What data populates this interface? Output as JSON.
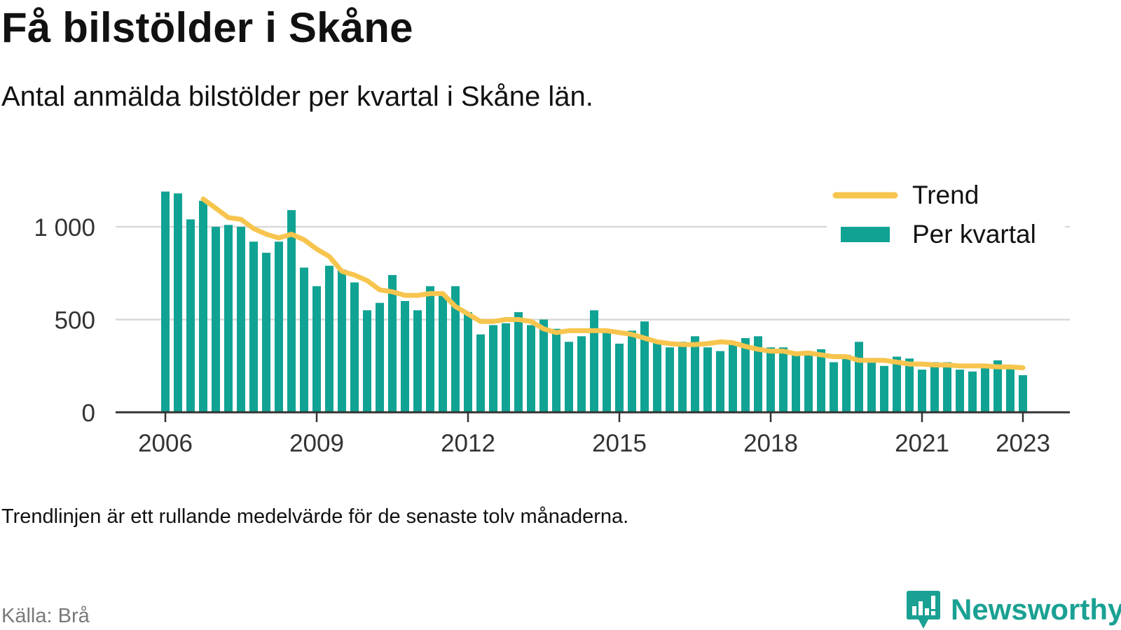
{
  "header": {
    "title": "Få bilstölder i Skåne",
    "subtitle": "Antal anmälda bilstölder per kvartal i Skåne län."
  },
  "footer": {
    "note": "Trendlinjen är ett rullande medelvärde för de senaste tolv månaderna.",
    "source": "Källa: Brå",
    "brand": "Newsworthy"
  },
  "colors": {
    "bars": "#10a393",
    "trend": "#f7c54e",
    "grid": "#d9d9d9",
    "axis": "#333333",
    "brand": "#1aa193"
  },
  "chart_data": {
    "type": "bar",
    "x_start": 2006,
    "x_step_per_bar": 0.25,
    "xticks": [
      2006,
      2009,
      2012,
      2015,
      2018,
      2021,
      2023
    ],
    "yticks": [
      0,
      500,
      1000
    ],
    "ytick_labels": [
      "0",
      "500",
      "1 000"
    ],
    "ylim": [
      0,
      1250
    ],
    "grid": true,
    "legend_position": "top-right",
    "legend": [
      "Trend",
      "Per kvartal"
    ],
    "series": [
      {
        "name": "Per kvartal",
        "kind": "bar",
        "values": [
          1190,
          1180,
          1040,
          1140,
          1000,
          1010,
          1000,
          920,
          860,
          920,
          1090,
          780,
          680,
          790,
          770,
          700,
          550,
          590,
          740,
          600,
          550,
          680,
          630,
          680,
          540,
          420,
          470,
          480,
          540,
          470,
          500,
          450,
          380,
          410,
          550,
          440,
          370,
          440,
          490,
          390,
          350,
          380,
          410,
          350,
          330,
          370,
          400,
          410,
          350,
          350,
          320,
          320,
          340,
          270,
          310,
          380,
          270,
          250,
          300,
          290,
          230,
          270,
          270,
          230,
          220,
          250,
          280,
          250,
          200
        ]
      },
      {
        "name": "Trend",
        "kind": "line",
        "start_index": 3,
        "values": [
          1150,
          1100,
          1050,
          1040,
          990,
          960,
          940,
          960,
          930,
          880,
          840,
          760,
          740,
          710,
          660,
          650,
          630,
          630,
          640,
          640,
          570,
          530,
          490,
          490,
          500,
          500,
          490,
          450,
          430,
          440,
          440,
          440,
          440,
          430,
          420,
          400,
          380,
          370,
          365,
          365,
          370,
          380,
          375,
          355,
          340,
          330,
          330,
          315,
          320,
          310,
          300,
          300,
          280,
          280,
          280,
          270,
          260,
          260,
          255,
          255,
          250,
          250,
          250,
          245,
          245,
          240
        ]
      }
    ]
  }
}
